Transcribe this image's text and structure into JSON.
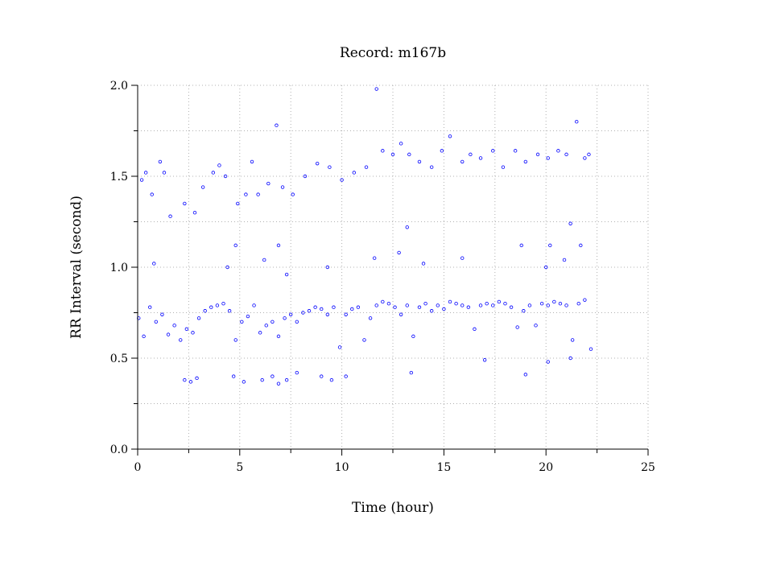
{
  "chart_data": {
    "type": "scatter",
    "title": "Record:  m167b",
    "xlabel": "Time (hour)",
    "ylabel": "RR Interval (second)",
    "xlim": [
      0,
      25
    ],
    "ylim": [
      0,
      2.0
    ],
    "x_ticks": [
      "0",
      "5",
      "10",
      "15",
      "20",
      "25"
    ],
    "y_ticks": [
      "0.0",
      "0.5",
      "1.0",
      "1.5",
      "2.0"
    ],
    "grid": true,
    "legend": "none",
    "marker": "open-circle",
    "colors": {
      "points": "#0000ff",
      "axes": "#000000",
      "grid": "#b0b0b0"
    },
    "series": [
      {
        "values": [
          [
            0.05,
            0.72
          ],
          [
            0.3,
            0.62
          ],
          [
            0.6,
            0.78
          ],
          [
            0.9,
            0.7
          ],
          [
            1.2,
            0.74
          ],
          [
            1.5,
            0.63
          ],
          [
            1.8,
            0.68
          ],
          [
            2.1,
            0.6
          ],
          [
            2.4,
            0.66
          ],
          [
            2.7,
            0.64
          ],
          [
            3.0,
            0.72
          ],
          [
            3.3,
            0.76
          ],
          [
            3.6,
            0.78
          ],
          [
            3.9,
            0.79
          ],
          [
            4.2,
            0.8
          ],
          [
            4.5,
            0.76
          ],
          [
            4.8,
            0.6
          ],
          [
            5.1,
            0.7
          ],
          [
            5.4,
            0.73
          ],
          [
            5.7,
            0.79
          ],
          [
            6.0,
            0.64
          ],
          [
            6.3,
            0.68
          ],
          [
            6.6,
            0.7
          ],
          [
            6.9,
            0.62
          ],
          [
            7.2,
            0.72
          ],
          [
            7.5,
            0.74
          ],
          [
            7.8,
            0.7
          ],
          [
            8.1,
            0.75
          ],
          [
            8.4,
            0.76
          ],
          [
            8.7,
            0.78
          ],
          [
            9.0,
            0.77
          ],
          [
            9.3,
            0.74
          ],
          [
            9.6,
            0.78
          ],
          [
            9.9,
            0.56
          ],
          [
            10.2,
            0.74
          ],
          [
            10.5,
            0.77
          ],
          [
            10.8,
            0.78
          ],
          [
            11.1,
            0.6
          ],
          [
            11.4,
            0.72
          ],
          [
            11.7,
            0.79
          ],
          [
            12.0,
            0.81
          ],
          [
            12.3,
            0.8
          ],
          [
            12.6,
            0.78
          ],
          [
            12.9,
            0.74
          ],
          [
            13.2,
            0.79
          ],
          [
            13.5,
            0.62
          ],
          [
            13.8,
            0.78
          ],
          [
            14.1,
            0.8
          ],
          [
            14.4,
            0.76
          ],
          [
            14.7,
            0.79
          ],
          [
            15.0,
            0.77
          ],
          [
            15.3,
            0.81
          ],
          [
            15.6,
            0.8
          ],
          [
            15.9,
            0.79
          ],
          [
            16.2,
            0.78
          ],
          [
            16.5,
            0.66
          ],
          [
            16.8,
            0.79
          ],
          [
            17.1,
            0.8
          ],
          [
            17.4,
            0.79
          ],
          [
            17.7,
            0.81
          ],
          [
            18.0,
            0.8
          ],
          [
            18.3,
            0.78
          ],
          [
            18.6,
            0.67
          ],
          [
            18.9,
            0.76
          ],
          [
            19.2,
            0.79
          ],
          [
            19.5,
            0.68
          ],
          [
            19.8,
            0.8
          ],
          [
            20.1,
            0.79
          ],
          [
            20.4,
            0.81
          ],
          [
            20.7,
            0.8
          ],
          [
            21.0,
            0.79
          ],
          [
            21.3,
            0.6
          ],
          [
            21.6,
            0.8
          ],
          [
            21.9,
            0.82
          ],
          [
            22.2,
            0.55
          ],
          [
            0.2,
            1.48
          ],
          [
            0.4,
            1.52
          ],
          [
            0.7,
            1.4
          ],
          [
            1.1,
            1.58
          ],
          [
            1.3,
            1.52
          ],
          [
            1.6,
            1.28
          ],
          [
            2.3,
            1.35
          ],
          [
            2.8,
            1.3
          ],
          [
            3.2,
            1.44
          ],
          [
            3.7,
            1.52
          ],
          [
            4.0,
            1.56
          ],
          [
            4.3,
            1.5
          ],
          [
            4.9,
            1.35
          ],
          [
            5.3,
            1.4
          ],
          [
            5.6,
            1.58
          ],
          [
            5.9,
            1.4
          ],
          [
            6.4,
            1.46
          ],
          [
            6.8,
            1.78
          ],
          [
            7.1,
            1.44
          ],
          [
            7.6,
            1.4
          ],
          [
            8.2,
            1.5
          ],
          [
            8.8,
            1.57
          ],
          [
            9.4,
            1.55
          ],
          [
            10.0,
            1.48
          ],
          [
            10.6,
            1.52
          ],
          [
            11.2,
            1.55
          ],
          [
            11.7,
            1.98
          ],
          [
            12.0,
            1.64
          ],
          [
            12.5,
            1.62
          ],
          [
            12.9,
            1.68
          ],
          [
            13.3,
            1.62
          ],
          [
            13.8,
            1.58
          ],
          [
            14.4,
            1.55
          ],
          [
            14.9,
            1.64
          ],
          [
            15.3,
            1.72
          ],
          [
            15.9,
            1.58
          ],
          [
            16.3,
            1.62
          ],
          [
            16.8,
            1.6
          ],
          [
            17.4,
            1.64
          ],
          [
            17.9,
            1.55
          ],
          [
            18.5,
            1.64
          ],
          [
            19.0,
            1.58
          ],
          [
            19.6,
            1.62
          ],
          [
            20.1,
            1.6
          ],
          [
            20.6,
            1.64
          ],
          [
            21.0,
            1.62
          ],
          [
            21.5,
            1.8
          ],
          [
            21.9,
            1.6
          ],
          [
            22.1,
            1.62
          ],
          [
            2.3,
            0.38
          ],
          [
            2.6,
            0.37
          ],
          [
            2.9,
            0.39
          ],
          [
            4.7,
            0.4
          ],
          [
            5.2,
            0.37
          ],
          [
            6.1,
            0.38
          ],
          [
            6.6,
            0.4
          ],
          [
            6.9,
            0.36
          ],
          [
            7.3,
            0.38
          ],
          [
            7.8,
            0.42
          ],
          [
            9.0,
            0.4
          ],
          [
            9.5,
            0.38
          ],
          [
            10.2,
            0.4
          ],
          [
            13.4,
            0.42
          ],
          [
            17.0,
            0.49
          ],
          [
            19.0,
            0.41
          ],
          [
            20.1,
            0.48
          ],
          [
            21.2,
            0.5
          ],
          [
            0.8,
            1.02
          ],
          [
            4.4,
            1.0
          ],
          [
            4.8,
            1.12
          ],
          [
            6.2,
            1.04
          ],
          [
            6.9,
            1.12
          ],
          [
            7.3,
            0.96
          ],
          [
            9.3,
            1.0
          ],
          [
            11.6,
            1.05
          ],
          [
            12.8,
            1.08
          ],
          [
            13.2,
            1.22
          ],
          [
            14.0,
            1.02
          ],
          [
            15.9,
            1.05
          ],
          [
            18.8,
            1.12
          ],
          [
            20.0,
            1.0
          ],
          [
            20.2,
            1.12
          ],
          [
            20.9,
            1.04
          ],
          [
            21.2,
            1.24
          ],
          [
            21.7,
            1.12
          ]
        ]
      }
    ]
  }
}
